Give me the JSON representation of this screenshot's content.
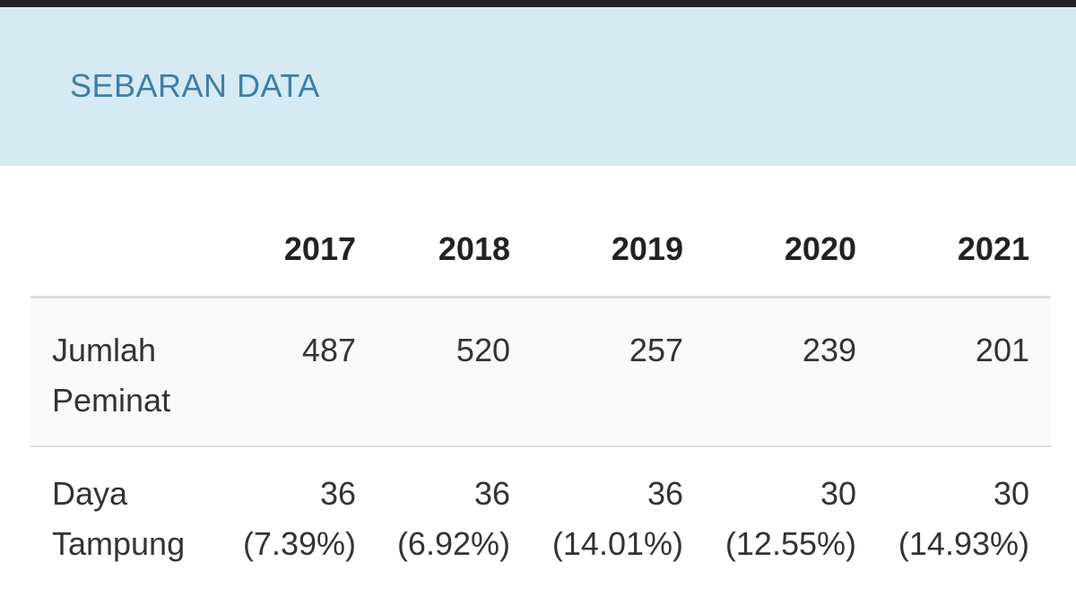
{
  "header": {
    "title": "SEBARAN DATA"
  },
  "table": {
    "columns": [
      "2017",
      "2018",
      "2019",
      "2020",
      "2021"
    ],
    "rows": [
      {
        "label_line1": "Jumlah",
        "label_line2": "Peminat",
        "values": [
          "487",
          "520",
          "257",
          "239",
          "201"
        ]
      },
      {
        "label_line1": "Daya",
        "label_line2": "Tampung",
        "values": [
          "36",
          "36",
          "36",
          "30",
          "30"
        ],
        "percentages": [
          "(7.39%)",
          "(6.92%)",
          "(14.01%)",
          "(12.55%)",
          "(14.93%)"
        ]
      }
    ]
  },
  "colors": {
    "header_bg": "#d6eaf4",
    "header_text": "#3d7fa5",
    "top_bar": "#1f2327",
    "row_alt_bg": "#f9f9f9",
    "divider": "#dcdcdc"
  }
}
